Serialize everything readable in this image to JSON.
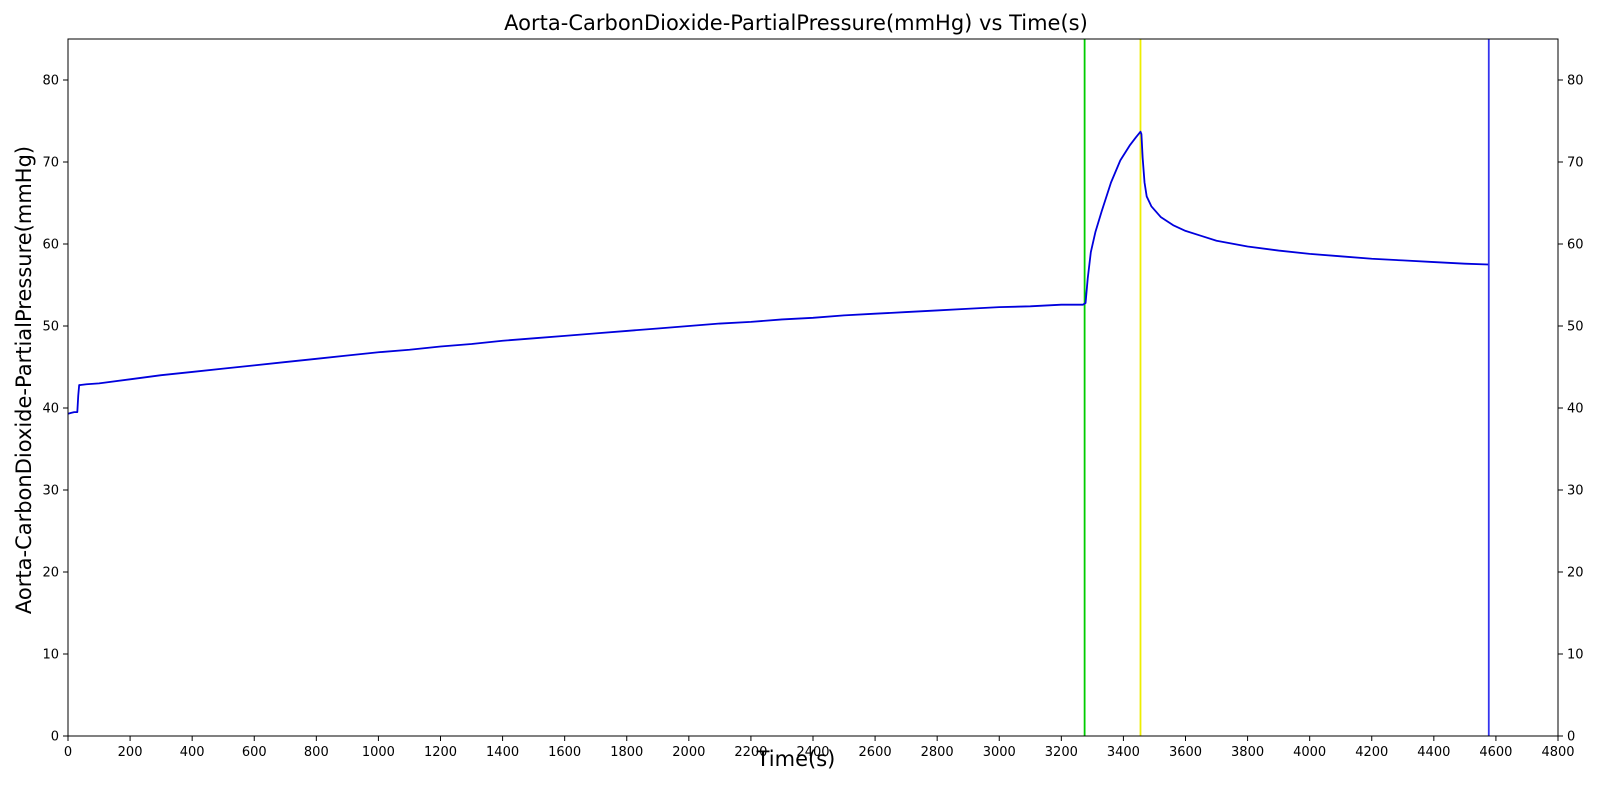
{
  "chart_data": {
    "type": "line",
    "title": "Aorta-CarbonDioxide-PartialPressure(mmHg) vs Time(s)",
    "xlabel": "Time(s)",
    "ylabel": "Aorta-CarbonDioxide-PartialPressure(mmHg)",
    "xlim": [
      0,
      4800
    ],
    "ylim": [
      0,
      85
    ],
    "x_ticks": [
      0,
      200,
      400,
      600,
      800,
      1000,
      1200,
      1400,
      1600,
      1800,
      2000,
      2200,
      2400,
      2600,
      2800,
      3000,
      3200,
      3400,
      3600,
      3800,
      4000,
      4200,
      4400,
      4600,
      4800
    ],
    "y_ticks": [
      0,
      10,
      20,
      30,
      40,
      50,
      60,
      70,
      80
    ],
    "y_ticks_right": true,
    "grid": false,
    "line_color": "#0000dd",
    "series": [
      {
        "x": [
          0,
          10,
          20,
          30,
          33,
          36,
          40,
          60,
          100,
          200,
          300,
          400,
          500,
          600,
          700,
          800,
          900,
          1000,
          1100,
          1200,
          1300,
          1400,
          1500,
          1600,
          1700,
          1800,
          1900,
          2000,
          2100,
          2200,
          2300,
          2400,
          2500,
          2600,
          2700,
          2800,
          2900,
          3000,
          3100,
          3200,
          3270,
          3278,
          3285,
          3295,
          3310,
          3330,
          3360,
          3390,
          3420,
          3440,
          3455,
          3458,
          3462,
          3468,
          3475,
          3490,
          3520,
          3560,
          3600,
          3650,
          3700,
          3800,
          3900,
          4000,
          4100,
          4200,
          4300,
          4400,
          4500,
          4575
        ],
        "y": [
          39.3,
          39.4,
          39.5,
          39.5,
          41.5,
          42.8,
          42.8,
          42.9,
          43.0,
          43.5,
          44.0,
          44.4,
          44.8,
          45.2,
          45.6,
          46.0,
          46.4,
          46.8,
          47.1,
          47.5,
          47.8,
          48.2,
          48.5,
          48.8,
          49.1,
          49.4,
          49.7,
          50.0,
          50.3,
          50.5,
          50.8,
          51.0,
          51.3,
          51.5,
          51.7,
          51.9,
          52.1,
          52.3,
          52.4,
          52.6,
          52.6,
          52.8,
          55.8,
          59.0,
          61.5,
          64.0,
          67.5,
          70.2,
          72.0,
          73.0,
          73.7,
          73.4,
          70.5,
          67.5,
          65.8,
          64.6,
          63.3,
          62.3,
          61.6,
          61.0,
          60.4,
          59.7,
          59.2,
          58.8,
          58.5,
          58.2,
          58.0,
          57.8,
          57.6,
          57.5
        ]
      }
    ],
    "vertical_lines": [
      {
        "x": 3275,
        "color": "#00cc00"
      },
      {
        "x": 3455,
        "color": "#eeee00"
      },
      {
        "x": 4577,
        "color": "#3333ee"
      }
    ]
  }
}
